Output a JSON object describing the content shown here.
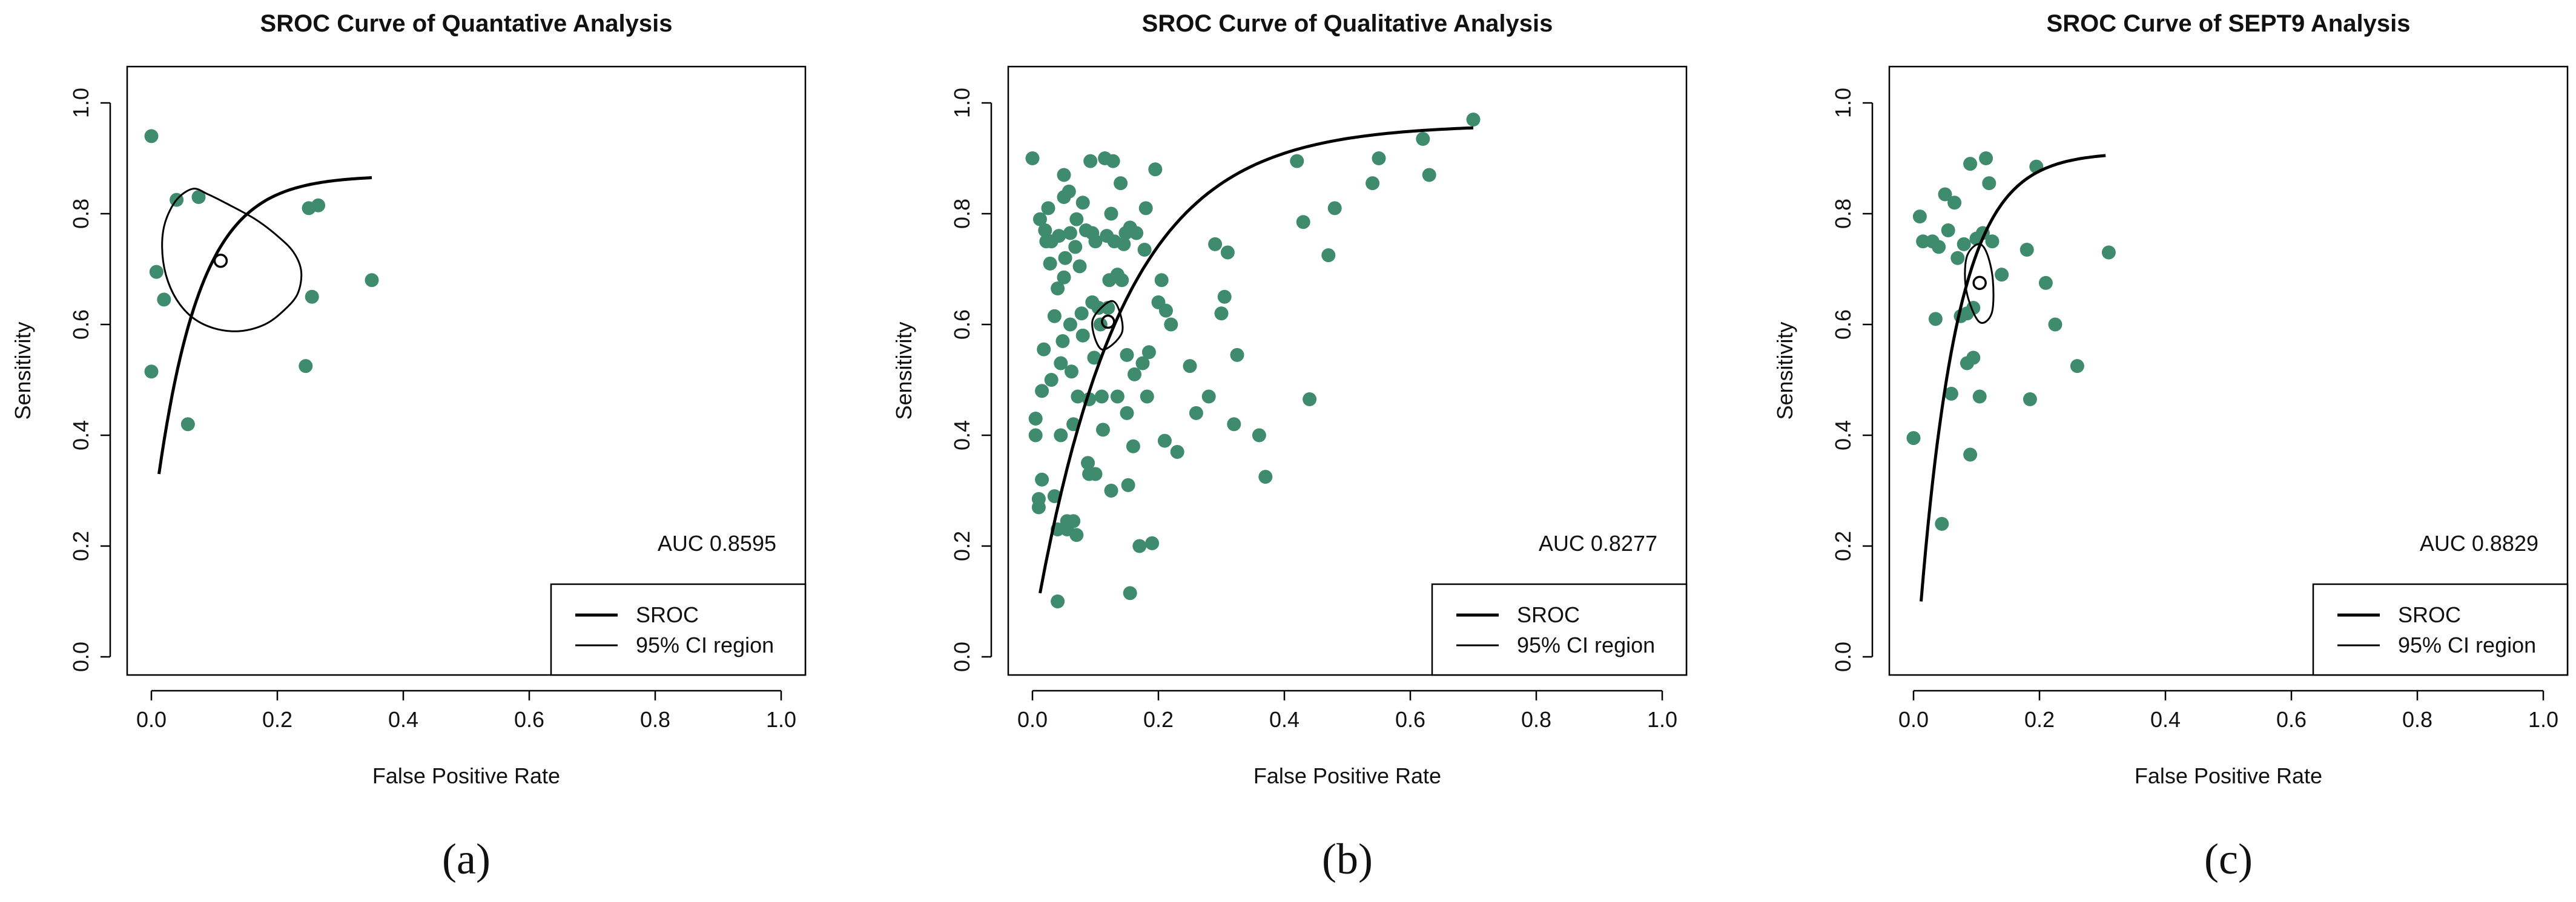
{
  "colors": {
    "point": "#3F8B6D",
    "line": "#000000",
    "frame": "#000000"
  },
  "chart_data": [
    {
      "type": "scatter",
      "panel_label": "(a)",
      "title": "SROC Curve of Quantative Analysis",
      "xlabel": "False Positive Rate",
      "ylabel": "Sensitivity",
      "xlim": [
        0,
        1
      ],
      "ylim": [
        0,
        1
      ],
      "xticks": [
        "0.0",
        "0.2",
        "0.4",
        "0.6",
        "0.8",
        "1.0"
      ],
      "yticks": [
        "0.0",
        "0.2",
        "0.4",
        "0.6",
        "0.8",
        "1.0"
      ],
      "auc_text": "AUC 0.8595",
      "legend": [
        "SROC",
        "95% CI region"
      ],
      "legend_position": "bottom-right",
      "sroc_curve": {
        "x_range": [
          0.012,
          0.35
        ],
        "y_start": 0.33,
        "y_end": 0.865
      },
      "summary_point": {
        "x": 0.11,
        "y": 0.715
      },
      "ci_region": [
        [
          0.066,
          0.845
        ],
        [
          0.04,
          0.825
        ],
        [
          0.022,
          0.785
        ],
        [
          0.017,
          0.74
        ],
        [
          0.023,
          0.69
        ],
        [
          0.04,
          0.645
        ],
        [
          0.066,
          0.612
        ],
        [
          0.1,
          0.593
        ],
        [
          0.14,
          0.588
        ],
        [
          0.18,
          0.6
        ],
        [
          0.21,
          0.625
        ],
        [
          0.232,
          0.655
        ],
        [
          0.238,
          0.695
        ],
        [
          0.226,
          0.73
        ],
        [
          0.2,
          0.76
        ],
        [
          0.165,
          0.79
        ],
        [
          0.12,
          0.818
        ],
        [
          0.09,
          0.835
        ]
      ],
      "points": [
        [
          0.0,
          0.94
        ],
        [
          0.0,
          0.515
        ],
        [
          0.008,
          0.695
        ],
        [
          0.02,
          0.645
        ],
        [
          0.04,
          0.825
        ],
        [
          0.058,
          0.42
        ],
        [
          0.075,
          0.83
        ],
        [
          0.25,
          0.81
        ],
        [
          0.265,
          0.815
        ],
        [
          0.245,
          0.525
        ],
        [
          0.255,
          0.65
        ],
        [
          0.35,
          0.68
        ]
      ]
    },
    {
      "type": "scatter",
      "panel_label": "(b)",
      "title": "SROC Curve of Qualitative Analysis",
      "xlabel": "False Positive Rate",
      "ylabel": "Sensitivity",
      "xlim": [
        0,
        1
      ],
      "ylim": [
        0,
        1
      ],
      "xticks": [
        "0.0",
        "0.2",
        "0.4",
        "0.6",
        "0.8",
        "1.0"
      ],
      "yticks": [
        "0.0",
        "0.2",
        "0.4",
        "0.6",
        "0.8",
        "1.0"
      ],
      "auc_text": "AUC 0.8277",
      "legend": [
        "SROC",
        "95% CI region"
      ],
      "legend_position": "bottom-right",
      "sroc_curve": {
        "x_range": [
          0.012,
          0.7
        ],
        "y_start": 0.115,
        "y_end": 0.955
      },
      "summary_point": {
        "x": 0.12,
        "y": 0.605
      },
      "ci_region": [
        [
          0.12,
          0.64
        ],
        [
          0.095,
          0.605
        ],
        [
          0.11,
          0.555
        ],
        [
          0.142,
          0.585
        ],
        [
          0.135,
          0.633
        ]
      ],
      "points": [
        [
          0.0,
          0.9
        ],
        [
          0.005,
          0.4
        ],
        [
          0.005,
          0.43
        ],
        [
          0.01,
          0.27
        ],
        [
          0.01,
          0.285
        ],
        [
          0.012,
          0.79
        ],
        [
          0.015,
          0.32
        ],
        [
          0.015,
          0.48
        ],
        [
          0.018,
          0.555
        ],
        [
          0.02,
          0.77
        ],
        [
          0.022,
          0.75
        ],
        [
          0.025,
          0.81
        ],
        [
          0.028,
          0.71
        ],
        [
          0.03,
          0.5
        ],
        [
          0.03,
          0.75
        ],
        [
          0.035,
          0.29
        ],
        [
          0.035,
          0.615
        ],
        [
          0.04,
          0.1
        ],
        [
          0.04,
          0.23
        ],
        [
          0.04,
          0.665
        ],
        [
          0.042,
          0.76
        ],
        [
          0.045,
          0.4
        ],
        [
          0.045,
          0.53
        ],
        [
          0.048,
          0.57
        ],
        [
          0.05,
          0.83
        ],
        [
          0.05,
          0.87
        ],
        [
          0.05,
          0.685
        ],
        [
          0.052,
          0.72
        ],
        [
          0.055,
          0.245
        ],
        [
          0.055,
          0.23
        ],
        [
          0.058,
          0.84
        ],
        [
          0.06,
          0.765
        ],
        [
          0.06,
          0.6
        ],
        [
          0.062,
          0.515
        ],
        [
          0.065,
          0.245
        ],
        [
          0.065,
          0.42
        ],
        [
          0.068,
          0.74
        ],
        [
          0.07,
          0.22
        ],
        [
          0.07,
          0.79
        ],
        [
          0.072,
          0.47
        ],
        [
          0.075,
          0.705
        ],
        [
          0.078,
          0.62
        ],
        [
          0.08,
          0.82
        ],
        [
          0.08,
          0.58
        ],
        [
          0.085,
          0.77
        ],
        [
          0.088,
          0.35
        ],
        [
          0.09,
          0.33
        ],
        [
          0.09,
          0.465
        ],
        [
          0.092,
          0.895
        ],
        [
          0.095,
          0.765
        ],
        [
          0.095,
          0.64
        ],
        [
          0.098,
          0.54
        ],
        [
          0.1,
          0.33
        ],
        [
          0.1,
          0.75
        ],
        [
          0.105,
          0.63
        ],
        [
          0.108,
          0.6
        ],
        [
          0.11,
          0.47
        ],
        [
          0.112,
          0.41
        ],
        [
          0.115,
          0.9
        ],
        [
          0.118,
          0.76
        ],
        [
          0.12,
          0.63
        ],
        [
          0.122,
          0.68
        ],
        [
          0.125,
          0.8
        ],
        [
          0.125,
          0.3
        ],
        [
          0.128,
          0.895
        ],
        [
          0.13,
          0.75
        ],
        [
          0.135,
          0.47
        ],
        [
          0.135,
          0.69
        ],
        [
          0.14,
          0.855
        ],
        [
          0.142,
          0.68
        ],
        [
          0.145,
          0.745
        ],
        [
          0.148,
          0.765
        ],
        [
          0.15,
          0.545
        ],
        [
          0.15,
          0.44
        ],
        [
          0.152,
          0.31
        ],
        [
          0.155,
          0.775
        ],
        [
          0.155,
          0.115
        ],
        [
          0.16,
          0.38
        ],
        [
          0.162,
          0.51
        ],
        [
          0.165,
          0.765
        ],
        [
          0.17,
          0.2
        ],
        [
          0.175,
          0.53
        ],
        [
          0.178,
          0.735
        ],
        [
          0.18,
          0.81
        ],
        [
          0.182,
          0.47
        ],
        [
          0.185,
          0.55
        ],
        [
          0.19,
          0.205
        ],
        [
          0.195,
          0.88
        ],
        [
          0.2,
          0.64
        ],
        [
          0.205,
          0.68
        ],
        [
          0.21,
          0.39
        ],
        [
          0.212,
          0.625
        ],
        [
          0.22,
          0.6
        ],
        [
          0.23,
          0.37
        ],
        [
          0.25,
          0.525
        ],
        [
          0.26,
          0.44
        ],
        [
          0.28,
          0.47
        ],
        [
          0.29,
          0.745
        ],
        [
          0.3,
          0.62
        ],
        [
          0.305,
          0.65
        ],
        [
          0.31,
          0.73
        ],
        [
          0.32,
          0.42
        ],
        [
          0.325,
          0.545
        ],
        [
          0.36,
          0.4
        ],
        [
          0.37,
          0.325
        ],
        [
          0.42,
          0.895
        ],
        [
          0.43,
          0.785
        ],
        [
          0.44,
          0.465
        ],
        [
          0.47,
          0.725
        ],
        [
          0.48,
          0.81
        ],
        [
          0.54,
          0.855
        ],
        [
          0.55,
          0.9
        ],
        [
          0.62,
          0.935
        ],
        [
          0.63,
          0.87
        ],
        [
          0.7,
          0.97
        ]
      ]
    },
    {
      "type": "scatter",
      "panel_label": "(c)",
      "title": "SROC Curve of SEPT9 Analysis",
      "xlabel": "False Positive Rate",
      "ylabel": "Sensitivity",
      "xlim": [
        0,
        1
      ],
      "ylim": [
        0,
        1
      ],
      "xticks": [
        "0.0",
        "0.2",
        "0.4",
        "0.6",
        "0.8",
        "1.0"
      ],
      "yticks": [
        "0.0",
        "0.2",
        "0.4",
        "0.6",
        "0.8",
        "1.0"
      ],
      "auc_text": "AUC 0.8829",
      "legend": [
        "SROC",
        "95% CI region"
      ],
      "legend_position": "bottom-right",
      "sroc_curve": {
        "x_range": [
          0.012,
          0.305
        ],
        "y_start": 0.1,
        "y_end": 0.905
      },
      "summary_point": {
        "x": 0.105,
        "y": 0.675
      },
      "ci_region": [
        [
          0.102,
          0.745
        ],
        [
          0.084,
          0.72
        ],
        [
          0.084,
          0.66
        ],
        [
          0.104,
          0.605
        ],
        [
          0.124,
          0.62
        ],
        [
          0.126,
          0.68
        ],
        [
          0.116,
          0.73
        ]
      ],
      "points": [
        [
          0.0,
          0.395
        ],
        [
          0.01,
          0.795
        ],
        [
          0.015,
          0.75
        ],
        [
          0.03,
          0.75
        ],
        [
          0.035,
          0.61
        ],
        [
          0.04,
          0.74
        ],
        [
          0.045,
          0.24
        ],
        [
          0.05,
          0.835
        ],
        [
          0.055,
          0.77
        ],
        [
          0.06,
          0.475
        ],
        [
          0.065,
          0.82
        ],
        [
          0.07,
          0.72
        ],
        [
          0.075,
          0.615
        ],
        [
          0.08,
          0.745
        ],
        [
          0.085,
          0.62
        ],
        [
          0.085,
          0.53
        ],
        [
          0.09,
          0.89
        ],
        [
          0.09,
          0.365
        ],
        [
          0.095,
          0.63
        ],
        [
          0.095,
          0.54
        ],
        [
          0.1,
          0.755
        ],
        [
          0.105,
          0.47
        ],
        [
          0.11,
          0.765
        ],
        [
          0.115,
          0.9
        ],
        [
          0.12,
          0.855
        ],
        [
          0.125,
          0.75
        ],
        [
          0.14,
          0.69
        ],
        [
          0.18,
          0.735
        ],
        [
          0.185,
          0.465
        ],
        [
          0.195,
          0.885
        ],
        [
          0.21,
          0.675
        ],
        [
          0.225,
          0.6
        ],
        [
          0.26,
          0.525
        ],
        [
          0.31,
          0.73
        ]
      ]
    }
  ]
}
